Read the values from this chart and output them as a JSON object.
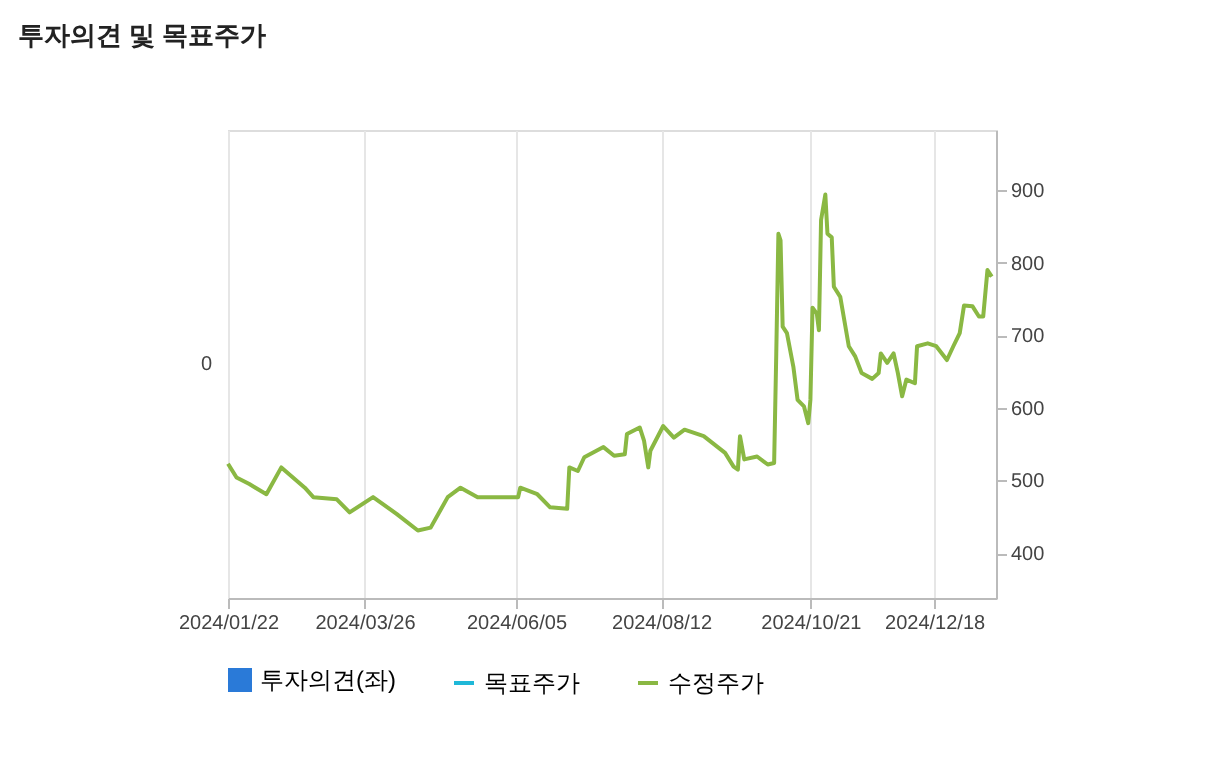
{
  "chart_data": {
    "type": "line",
    "title": "투자의견 및 목표주가",
    "x": [
      "2024-01-22",
      "2024-01-26",
      "2024-02-01",
      "2024-02-09",
      "2024-02-16",
      "2024-02-27",
      "2024-03-02",
      "2024-03-13",
      "2024-03-19",
      "2024-03-30",
      "2024-04-10",
      "2024-04-20",
      "2024-04-26",
      "2024-05-04",
      "2024-05-10",
      "2024-05-18",
      "2024-06-06",
      "2024-06-07",
      "2024-06-15",
      "2024-06-21",
      "2024-06-29",
      "2024-06-30",
      "2024-07-04",
      "2024-07-07",
      "2024-07-16",
      "2024-07-21",
      "2024-07-26",
      "2024-07-27",
      "2024-08-02",
      "2024-08-04",
      "2024-08-06",
      "2024-08-07",
      "2024-08-13",
      "2024-08-18",
      "2024-08-23",
      "2024-09-01",
      "2024-09-11",
      "2024-09-15",
      "2024-09-17",
      "2024-09-18",
      "2024-09-20",
      "2024-09-26",
      "2024-10-01",
      "2024-10-04",
      "2024-10-05",
      "2024-10-06",
      "2024-10-07",
      "2024-10-08",
      "2024-10-10",
      "2024-10-13",
      "2024-10-15",
      "2024-10-18",
      "2024-10-20",
      "2024-10-21",
      "2024-10-22",
      "2024-10-24",
      "2024-10-25",
      "2024-10-26",
      "2024-10-28",
      "2024-10-29",
      "2024-10-31",
      "2024-11-01",
      "2024-11-04",
      "2024-11-08",
      "2024-11-11",
      "2024-11-14",
      "2024-11-19",
      "2024-11-22",
      "2024-11-23",
      "2024-11-26",
      "2024-11-29",
      "2024-12-01",
      "2024-12-03",
      "2024-12-05",
      "2024-12-09",
      "2024-12-10",
      "2024-12-15",
      "2024-12-19",
      "2024-12-24",
      "2024-12-27",
      "2024-12-30",
      "2025-01-01",
      "2025-01-05",
      "2025-01-08",
      "2025-01-10",
      "2025-01-12",
      "2025-01-14"
    ],
    "series": [
      {
        "name": "투자의견(좌)",
        "type": "bar",
        "color": "#2a7ad8",
        "values": [
          null,
          null,
          null,
          null,
          null,
          null,
          null,
          null,
          null,
          null,
          null,
          null,
          null,
          null,
          null,
          null,
          null,
          null,
          null,
          null,
          null,
          null,
          null,
          null,
          null,
          null,
          null,
          null,
          null,
          null,
          null,
          null,
          null,
          null,
          null,
          null,
          null,
          null,
          null,
          null,
          null,
          null,
          null,
          null,
          null,
          null,
          null,
          null,
          null,
          null,
          null,
          null,
          null,
          null,
          null,
          null,
          null,
          null,
          null,
          null,
          null,
          null,
          null,
          null,
          null,
          null,
          null,
          null,
          null,
          null,
          null,
          null,
          null,
          null,
          null,
          null,
          null,
          null,
          null,
          null,
          null,
          null,
          null,
          null,
          null,
          null,
          null
        ]
      },
      {
        "name": "목표주가",
        "color": "#1fb8d8",
        "values": [
          null,
          null,
          null,
          null,
          null,
          null,
          null,
          null,
          null,
          null,
          null,
          null,
          null,
          null,
          null,
          null,
          null,
          null,
          null,
          null,
          null,
          null,
          null,
          null,
          null,
          null,
          null,
          null,
          null,
          null,
          null,
          null,
          null,
          null,
          null,
          null,
          null,
          null,
          null,
          null,
          null,
          null,
          null,
          null,
          null,
          null,
          null,
          null,
          null,
          null,
          null,
          null,
          null,
          null,
          null,
          null,
          null,
          null,
          null,
          null,
          null,
          null,
          null,
          null,
          null,
          null,
          null,
          null,
          null,
          null,
          null,
          null,
          null,
          null,
          null,
          null,
          null,
          null,
          null,
          null,
          null,
          null,
          null,
          null,
          null,
          null,
          null
        ]
      },
      {
        "name": "수정주가",
        "color": "#8ab843",
        "values": [
          523,
          504,
          495,
          481,
          518,
          490,
          477,
          474,
          456,
          477,
          454,
          431,
          435,
          477,
          490,
          477,
          477,
          490,
          481,
          463,
          461,
          518,
          513,
          532,
          546,
          534,
          536,
          564,
          573,
          555,
          518,
          541,
          575,
          559,
          570,
          561,
          538,
          519,
          515,
          561,
          529,
          533,
          522,
          524,
          675,
          840,
          831,
          712,
          703,
          657,
          611,
          602,
          579,
          611,
          738,
          730,
          707,
          859,
          894,
          840,
          835,
          767,
          753,
          685,
          671,
          648,
          640,
          648,
          675,
          662,
          675,
          648,
          616,
          639,
          634,
          685,
          689,
          685,
          666,
          685,
          703,
          741,
          740,
          726,
          726,
          790,
          781
        ]
      }
    ],
    "xlim": [
      "2024-01-22",
      "2025-01-16"
    ],
    "xticks": [
      {
        "value": "2024-01-22",
        "label": "2024/01/22"
      },
      {
        "value": "2024-03-26",
        "label": "2024/03/26"
      },
      {
        "value": "2024-06-05",
        "label": "2024/06/05"
      },
      {
        "value": "2024-08-12",
        "label": "2024/08/12"
      },
      {
        "value": "2024-10-21",
        "label": "2024/10/21"
      },
      {
        "value": "2024-12-18",
        "label": "2024/12/18"
      }
    ],
    "ylim": [
      338,
      983
    ],
    "yticks": [
      400,
      500,
      600,
      700,
      800,
      900
    ],
    "annotations": [
      "0"
    ],
    "grid": "x",
    "legend": "bottom"
  }
}
